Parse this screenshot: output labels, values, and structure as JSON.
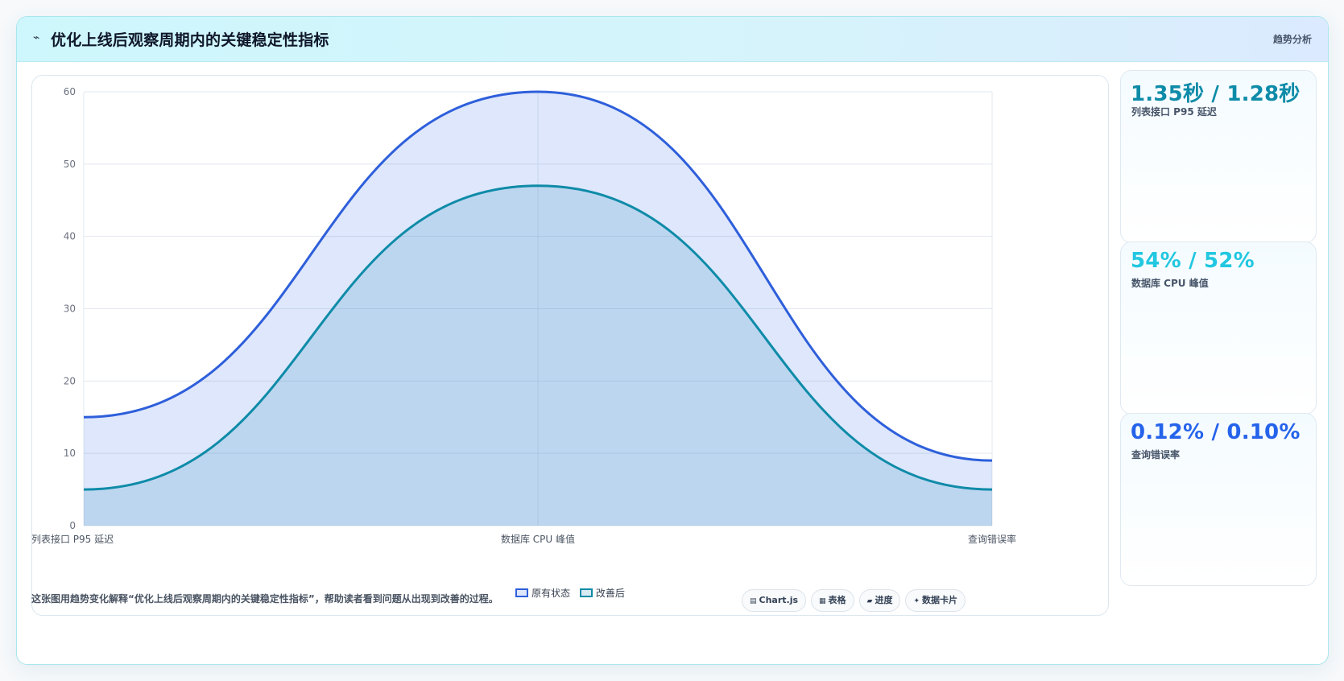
{
  "header": {
    "icon": "activity-icon",
    "title": "优化上线后观察周期内的关键稳定性指标",
    "badge": "趋势分析"
  },
  "chart_data": {
    "type": "area",
    "categories": [
      "列表接口 P95 延迟",
      "数据库 CPU 峰值",
      "查询错误率"
    ],
    "series": [
      {
        "name": "原有状态",
        "values": [
          15,
          60,
          9
        ],
        "color": "#2e5fdb",
        "fill": "rgba(59,110,230,0.17)"
      },
      {
        "name": "改善后",
        "values": [
          5,
          47,
          5
        ],
        "color": "#0e8ba8",
        "fill": "rgba(40,140,190,0.18)"
      }
    ],
    "yticks": [
      0,
      10,
      20,
      30,
      40,
      50,
      60
    ],
    "ylim": [
      0,
      60
    ],
    "grid": true,
    "legend_position": "bottom"
  },
  "stats": [
    {
      "value": "1.35秒 / 1.28秒",
      "label": "列表接口 P95 延迟",
      "color": "#0e8ba8"
    },
    {
      "value": "54% / 52%",
      "label": "数据库 CPU 峰值",
      "color": "#22c7e0"
    },
    {
      "value": "0.12% / 0.10%",
      "label": "查询错误率",
      "color": "#2563eb"
    }
  ],
  "footer": {
    "description": "这张图用趋势变化解释“优化上线后观察周期内的关键稳定性指标”，帮助读者看到问题从出现到改善的过程。",
    "pills": [
      {
        "icon": "chart-icon",
        "glyph": "▤",
        "label": "Chart.js"
      },
      {
        "icon": "table-icon",
        "glyph": "▦",
        "label": "表格"
      },
      {
        "icon": "progress-icon",
        "glyph": "▰",
        "label": "进度"
      },
      {
        "icon": "card-icon",
        "glyph": "✦",
        "label": "数据卡片"
      }
    ]
  }
}
